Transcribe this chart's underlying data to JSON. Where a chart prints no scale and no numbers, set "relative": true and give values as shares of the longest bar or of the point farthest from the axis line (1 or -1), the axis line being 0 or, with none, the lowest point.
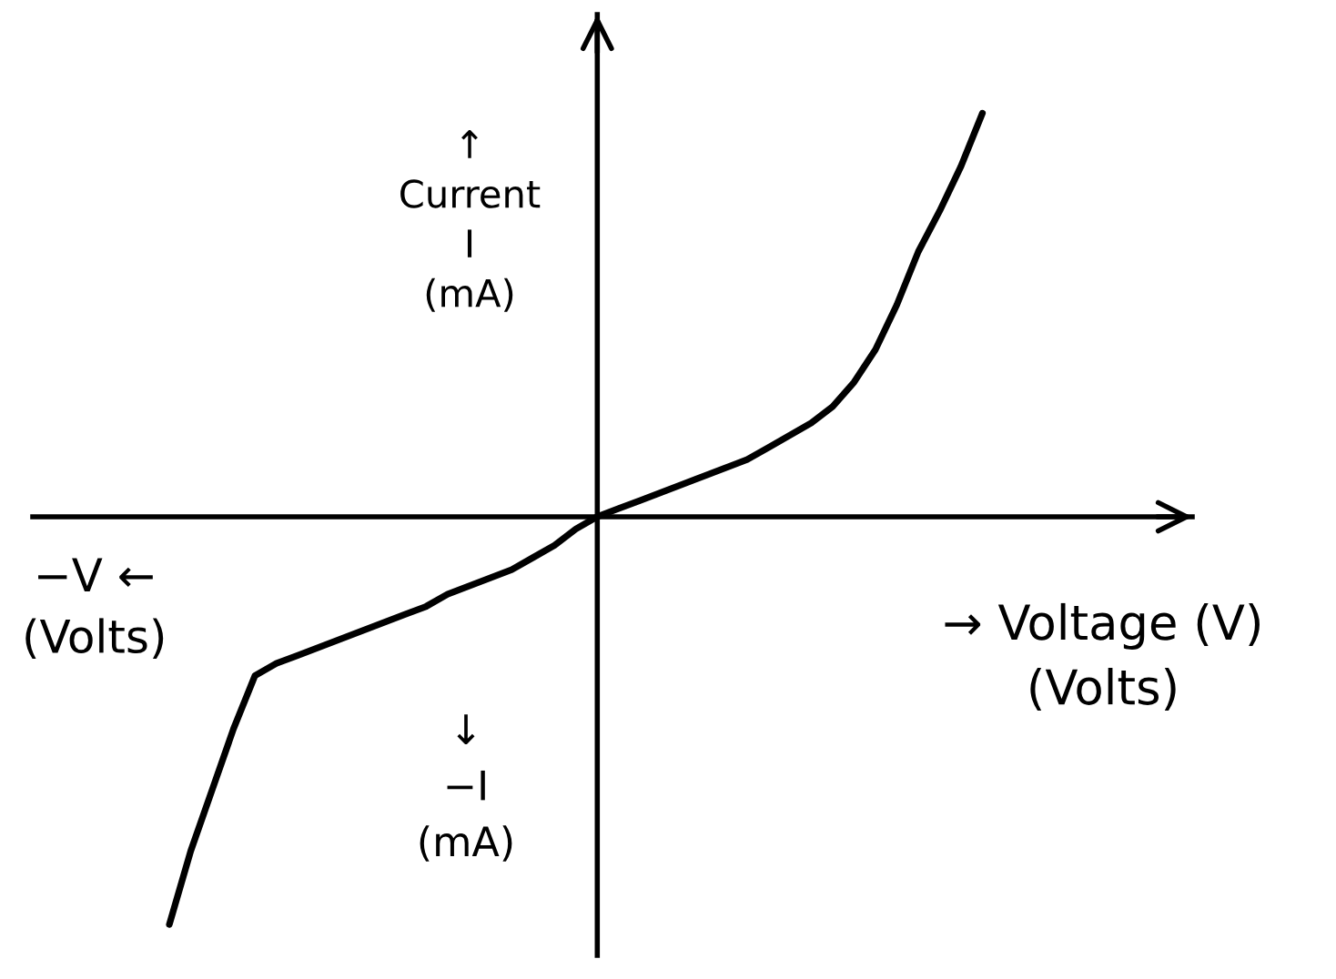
{
  "chart_data": {
    "type": "line",
    "relative": true,
    "xlabel": "→ Voltage (V)\n(Volts)",
    "ylabel": "↑\nCurrent\nI\n(mA)",
    "annotations": [
      "−V ←\n(Volts)",
      "↓\n−I\n(mA)"
    ],
    "categories": [
      null,
      null,
      null,
      null,
      null,
      null,
      null,
      null,
      null,
      null,
      null,
      null,
      null,
      null,
      null,
      null,
      null,
      null,
      null,
      null,
      null,
      null,
      null,
      null,
      null,
      null,
      null,
      null,
      null,
      null,
      null,
      null,
      null,
      null,
      null,
      null,
      null,
      null,
      null
    ],
    "series": [
      {
        "color": "#000000",
        "values": [
          -1,
          -0.82,
          -0.67,
          -0.52,
          -0.39,
          -0.36,
          -0.34,
          -0.32,
          -0.3,
          -0.28,
          -0.26,
          -0.24,
          -0.22,
          -0.19,
          -0.17,
          -0.15,
          -0.13,
          -0.1,
          -0.07,
          -0.03,
          0,
          0.02,
          0.04,
          0.06,
          0.08,
          0.1,
          0.12,
          0.14,
          0.17,
          0.2,
          0.23,
          0.27,
          0.33,
          0.41,
          0.52,
          0.65,
          0.75,
          0.86,
          0.99
        ]
      }
    ]
  }
}
